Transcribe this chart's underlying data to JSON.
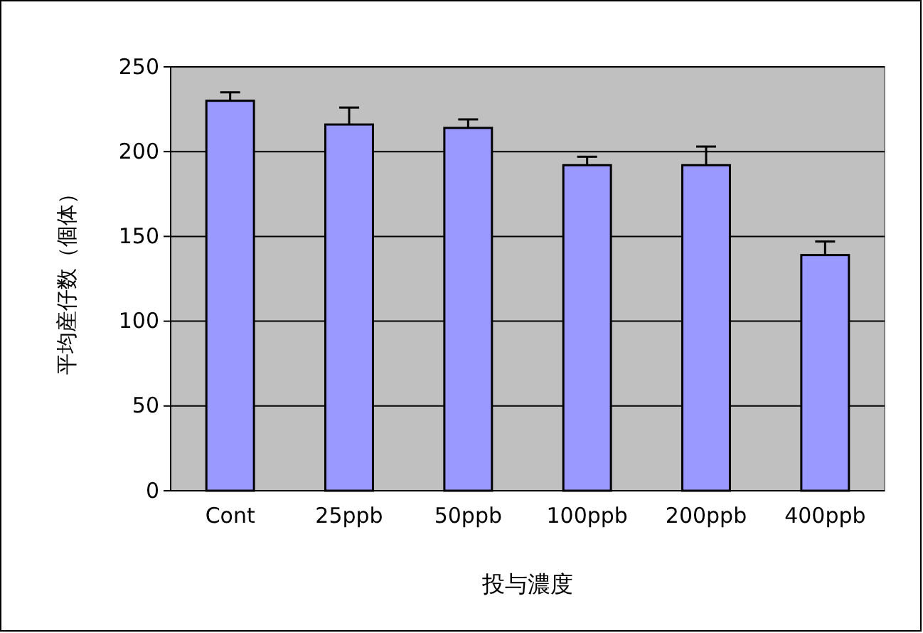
{
  "chart_data": {
    "type": "bar",
    "xlabel": "投与濃度",
    "ylabel": "平均産仔数（個体）",
    "categories": [
      "Cont",
      "25ppb",
      "50ppb",
      "100ppb",
      "200ppb",
      "400ppb"
    ],
    "series": [
      {
        "color": "#9999ff",
        "values": [
          230,
          216,
          214,
          192,
          192,
          139
        ],
        "errors": [
          5,
          10,
          5,
          5,
          11,
          8
        ]
      }
    ],
    "ylim": [
      0,
      250
    ],
    "yticks": [
      0,
      50,
      100,
      150,
      200,
      250
    ],
    "grid": "y"
  }
}
